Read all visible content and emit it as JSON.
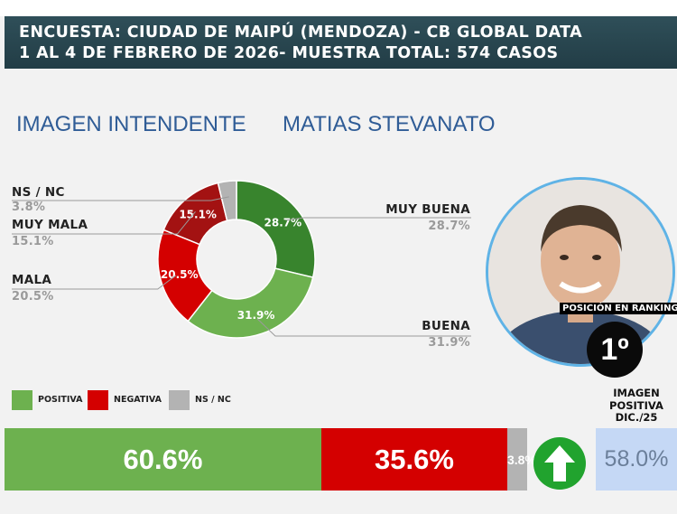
{
  "header": {
    "line1": "ENCUESTA: CIUDAD DE MAIPÚ (MENDOZA) - CB GLOBAL DATA",
    "line2": "1 AL 4 DE FEBRERO DE 2026- MUESTRA TOTAL: 574 CASOS"
  },
  "heading": {
    "left": "IMAGEN INTENDENTE",
    "right": "MATIAS STEVANATO"
  },
  "chart_data": [
    {
      "type": "pie",
      "donut": true,
      "slices": [
        {
          "label": "MUY BUENA",
          "value": 28.7,
          "value_label": "28.7%",
          "value_text": "28.7%",
          "color": "#38842d"
        },
        {
          "label": "BUENA",
          "value": 31.9,
          "value_label": "31.9%",
          "value_text": "31.9%",
          "color": "#6db14f"
        },
        {
          "label": "MALA",
          "value": 20.5,
          "value_label": "20.5%",
          "value_text": "20.5%",
          "color": "#d40000"
        },
        {
          "label": "MUY MALA",
          "value": 15.1,
          "value_label": "15.1%",
          "value_text": "15.1%",
          "color": "#a31212"
        },
        {
          "label": "NS / NC",
          "value": 3.8,
          "value_label": "3.8%",
          "value_text": "3.8%",
          "color": "#b3b3b3"
        }
      ]
    },
    {
      "type": "bar",
      "orientation": "horizontal-stacked",
      "legend": [
        {
          "label": "POSITIVA",
          "color": "#6db14f"
        },
        {
          "label": "NEGATIVA",
          "color": "#d40000"
        },
        {
          "label": "NS / NC",
          "color": "#b3b3b3"
        }
      ],
      "segments": [
        {
          "label": "POSITIVA",
          "value": 60.6,
          "text": "60.6%",
          "color": "#6db14f"
        },
        {
          "label": "NEGATIVA",
          "value": 35.6,
          "text": "35.6%",
          "color": "#d40000"
        },
        {
          "label": "NS / NC",
          "value": 3.8,
          "text": "3.8%",
          "color": "#b3b3b3"
        }
      ]
    }
  ],
  "ranking": {
    "label": "POSICIÓN EN RANKING",
    "value": "1º"
  },
  "previous": {
    "title_line1": "IMAGEN",
    "title_line2": "POSITIVA",
    "title_line3": "DIC./25",
    "value": "58.0%"
  },
  "arrow_icon": "arrow-up-icon"
}
